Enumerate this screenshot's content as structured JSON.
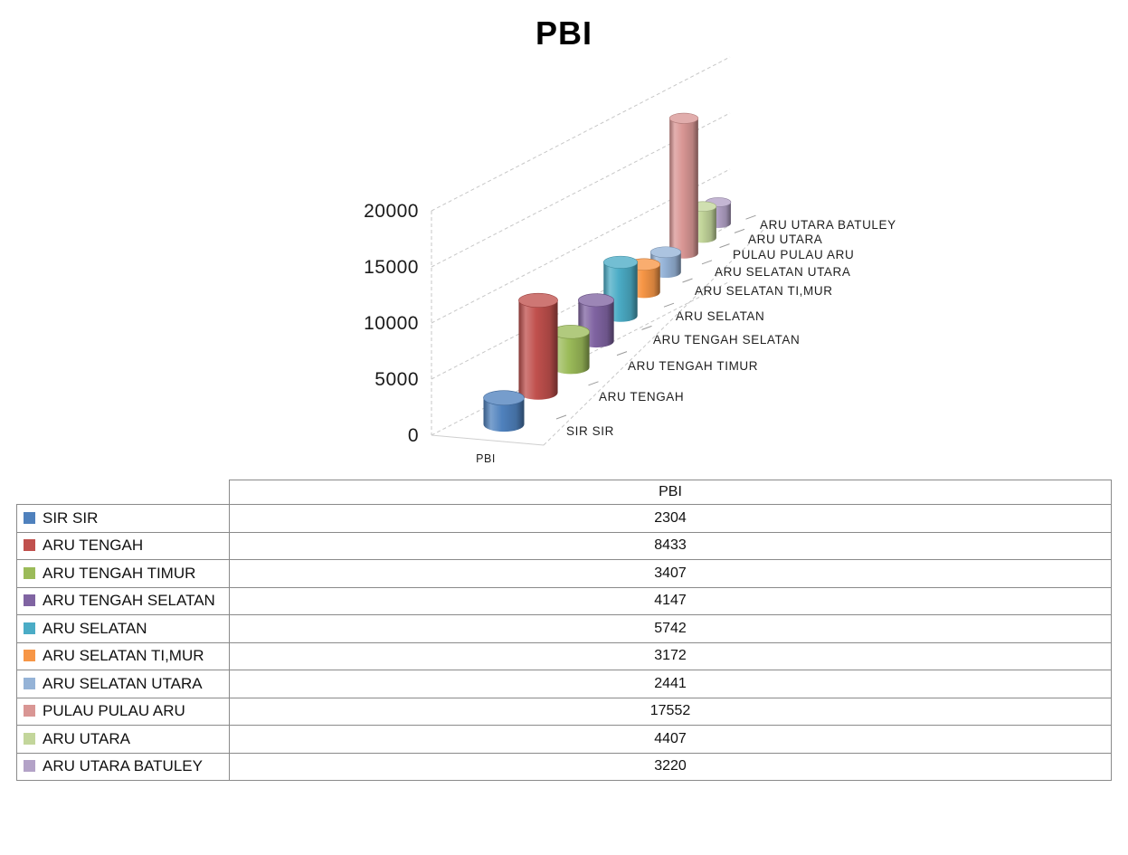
{
  "title": "PBI",
  "chart_data": {
    "type": "bar",
    "style": "3d-cylinder",
    "title": "PBI",
    "categories": [
      "SIR SIR",
      "ARU TENGAH",
      "ARU TENGAH TIMUR",
      "ARU TENGAH SELATAN",
      "ARU SELATAN",
      "ARU SELATAN TI,MUR",
      "ARU SELATAN UTARA",
      "PULAU PULAU ARU",
      "ARU UTARA",
      "ARU UTARA BATULEY"
    ],
    "values": [
      2304,
      8433,
      3407,
      4147,
      5742,
      3172,
      2441,
      17552,
      4407,
      3220
    ],
    "colors": [
      "#4F81BD",
      "#C0504D",
      "#9BBB59",
      "#8064A2",
      "#4BACC6",
      "#F79646",
      "#95B3D7",
      "#D99694",
      "#C3D69B",
      "#B3A2C7"
    ],
    "value_axis": {
      "ticks": [
        0,
        5000,
        10000,
        15000,
        20000
      ],
      "range": [
        0,
        20000
      ]
    },
    "category_axis_label": "PBI",
    "grid": "dashed",
    "legend_position": "none"
  },
  "table": {
    "header": "PBI",
    "rows": [
      {
        "label": "SIR SIR",
        "value": "2304",
        "color": "#4F81BD"
      },
      {
        "label": "ARU TENGAH",
        "value": "8433",
        "color": "#C0504D"
      },
      {
        "label": "ARU TENGAH TIMUR",
        "value": "3407",
        "color": "#9BBB59"
      },
      {
        "label": "ARU TENGAH SELATAN",
        "value": "4147",
        "color": "#8064A2"
      },
      {
        "label": "ARU SELATAN",
        "value": "5742",
        "color": "#4BACC6"
      },
      {
        "label": "ARU SELATAN TI,MUR",
        "value": "3172",
        "color": "#F79646"
      },
      {
        "label": "ARU SELATAN UTARA",
        "value": "2441",
        "color": "#95B3D7"
      },
      {
        "label": "PULAU PULAU ARU",
        "value": "17552",
        "color": "#D99694"
      },
      {
        "label": "ARU UTARA",
        "value": "4407",
        "color": "#C3D69B"
      },
      {
        "label": "ARU UTARA BATULEY",
        "value": "3220",
        "color": "#B3A2C7"
      }
    ]
  }
}
